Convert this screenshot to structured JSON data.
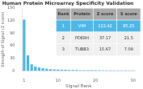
{
  "chart_data": {
    "type": "bar",
    "title": "Human Protein Microarray Specificity Validation",
    "xlabel": "Signal Rank",
    "ylabel": "Strength of Signal (Z score)",
    "x": [
      1,
      2,
      3,
      4,
      5,
      6,
      7,
      8,
      9,
      10,
      11,
      12,
      13,
      14,
      15,
      16,
      17,
      18,
      19,
      20,
      21,
      22,
      23,
      24,
      25,
      26,
      27,
      28,
      29,
      30
    ],
    "values": [
      122.42,
      37.17,
      15.67,
      10.5,
      8.2,
      6.5,
      5.1,
      4.3,
      3.8,
      3.2,
      2.9,
      2.6,
      2.4,
      2.2,
      2.0,
      1.9,
      1.8,
      1.7,
      1.6,
      1.55,
      1.5,
      1.45,
      1.4,
      1.35,
      1.3,
      1.25,
      1.2,
      1.15,
      1.1,
      1.05
    ],
    "color": "#4db8e8",
    "xlim": [
      0.5,
      30.5
    ],
    "xticks": [
      1,
      10,
      20,
      30
    ],
    "ylim": [
      0,
      150
    ],
    "yticks": [
      0,
      30,
      60,
      90,
      120,
      150
    ],
    "grid": false,
    "table": {
      "headers": [
        "Rank",
        "Protein",
        "Z score",
        "S score"
      ],
      "rows": [
        [
          "1",
          "VIM",
          "122.42",
          "85.25"
        ],
        [
          "2",
          "PDE8H",
          "37.17",
          "21.5"
        ],
        [
          "3",
          "TUBB3",
          "15.67",
          "7.08"
        ]
      ]
    }
  }
}
